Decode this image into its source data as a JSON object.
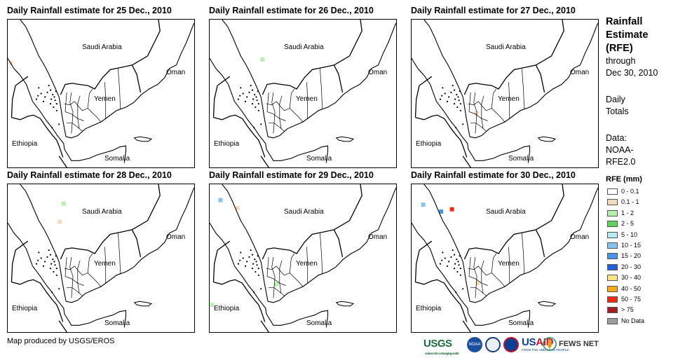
{
  "panels": [
    {
      "title": "Daily Rainfall estimate for 25 Dec., 2010",
      "rain_cells": [
        {
          "lon": 36.4,
          "lat": 19.2,
          "rfe": "0.1 - 1"
        }
      ]
    },
    {
      "title": "Daily Rainfall estimate for 26 Dec., 2010",
      "rain_cells": [
        {
          "lon": 42.8,
          "lat": 19.5,
          "rfe": "1 - 2"
        }
      ]
    },
    {
      "title": "Daily Rainfall estimate for 27 Dec., 2010",
      "rain_cells": [
        {
          "lon": 44.3,
          "lat": 14.8,
          "rfe": "0.1 - 1"
        }
      ]
    },
    {
      "title": "Daily Rainfall estimate for 28 Dec., 2010",
      "rain_cells": [
        {
          "lon": 43.2,
          "lat": 21.3,
          "rfe": "1 - 2"
        },
        {
          "lon": 42.7,
          "lat": 19.7,
          "rfe": "0.1 - 1"
        }
      ]
    },
    {
      "title": "Daily Rainfall estimate for 29 Dec., 2010",
      "rain_cells": [
        {
          "lon": 37.4,
          "lat": 21.6,
          "rfe": "10 - 15"
        },
        {
          "lon": 39.6,
          "lat": 20.9,
          "rfe": "0.1 - 1"
        },
        {
          "lon": 44.6,
          "lat": 14.2,
          "rfe": "1 - 2"
        },
        {
          "lon": 36.3,
          "lat": 12.4,
          "rfe": "1 - 2"
        }
      ]
    },
    {
      "title": "Daily Rainfall estimate for 30 Dec., 2010",
      "rain_cells": [
        {
          "lon": 39.8,
          "lat": 20.6,
          "rfe": "15 - 20"
        },
        {
          "lon": 41.2,
          "lat": 20.8,
          "rfe": "50 - 75"
        },
        {
          "lon": 37.5,
          "lat": 21.2,
          "rfe": "10 - 15"
        },
        {
          "lon": 44.5,
          "lat": 14.3,
          "rfe": "0.1 - 1"
        }
      ]
    }
  ],
  "map_labels": {
    "saudi_arabia": "Saudi Arabia",
    "oman": "Oman",
    "yemen": "Yemen",
    "ethiopia": "Ethiopia",
    "somalia": "Somalia"
  },
  "sidebar": {
    "title_line1": "Rainfall",
    "title_line2": "Estimate",
    "title_line3": "(RFE)",
    "through": "through",
    "end_date": "Dec 30, 2010",
    "daily_line1": "Daily",
    "daily_line2": "Totals",
    "data_label": "Data:",
    "data_line1": "NOAA-",
    "data_line2": "RFE2.0"
  },
  "legend": {
    "title": "RFE (mm)",
    "items": [
      {
        "label": "0 - 0.1",
        "color": "#ffffff"
      },
      {
        "label": "0.1 - 1",
        "color": "#f1dcc0"
      },
      {
        "label": "1 - 2",
        "color": "#b8f0b0"
      },
      {
        "label": "2 - 5",
        "color": "#5fd35a"
      },
      {
        "label": "5 - 10",
        "color": "#b5ecf8"
      },
      {
        "label": "10 - 15",
        "color": "#88c2f0"
      },
      {
        "label": "15 - 20",
        "color": "#4a94e8"
      },
      {
        "label": "20 - 30",
        "color": "#2660d8"
      },
      {
        "label": "30 - 40",
        "color": "#fbe488"
      },
      {
        "label": "40 - 50",
        "color": "#f6a91a"
      },
      {
        "label": "50 - 75",
        "color": "#ee2a16"
      },
      {
        "label": "> 75",
        "color": "#a31f1f"
      },
      {
        "label": "No Data",
        "color": "#9e9e9e"
      }
    ]
  },
  "footer": {
    "credit": "Map produced by USGS/EROS",
    "logos": {
      "usgs": "USGS",
      "usgs_tagline": "science for a changing world",
      "noaa": "NOAA",
      "usaid_us": "US",
      "usaid_aid": "AID",
      "usaid_tagline": "FROM THE AMERICAN PEOPLE",
      "fews": "FEWS NET"
    }
  }
}
